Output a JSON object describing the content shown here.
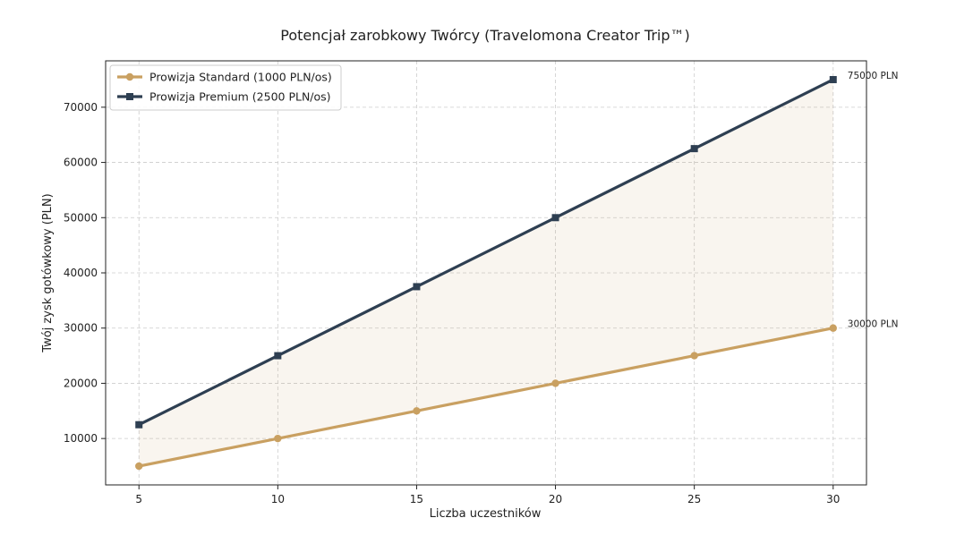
{
  "chart_data": {
    "type": "line",
    "title": "Potencjał zarobkowy Twórcy (Travelomona Creator Trip™)",
    "xlabel": "Liczba uczestników",
    "ylabel": "Twój zysk gotówkowy (PLN)",
    "x": [
      5,
      10,
      15,
      20,
      25,
      30
    ],
    "xlim": [
      3.8,
      31.2
    ],
    "ylim": [
      1600,
      78400
    ],
    "xticks": [
      5,
      10,
      15,
      20,
      25,
      30
    ],
    "yticks": [
      10000,
      20000,
      30000,
      40000,
      50000,
      60000,
      70000
    ],
    "grid": true,
    "legend_position": "top-left",
    "fill_between": {
      "from_series": 0,
      "to_series": 1,
      "color": "#c9a061",
      "opacity": 0.1
    },
    "series": [
      {
        "name": "Prowizja Standard (1000 PLN/os)",
        "values": [
          5000,
          10000,
          15000,
          20000,
          25000,
          30000
        ],
        "color": "#c9a061",
        "marker": "circle",
        "end_label": "30000 PLN"
      },
      {
        "name": "Prowizja Premium (2500 PLN/os)",
        "values": [
          12500,
          25000,
          37500,
          50000,
          62500,
          75000
        ],
        "color": "#2e3f52",
        "marker": "square",
        "end_label": "75000 PLN"
      }
    ]
  }
}
